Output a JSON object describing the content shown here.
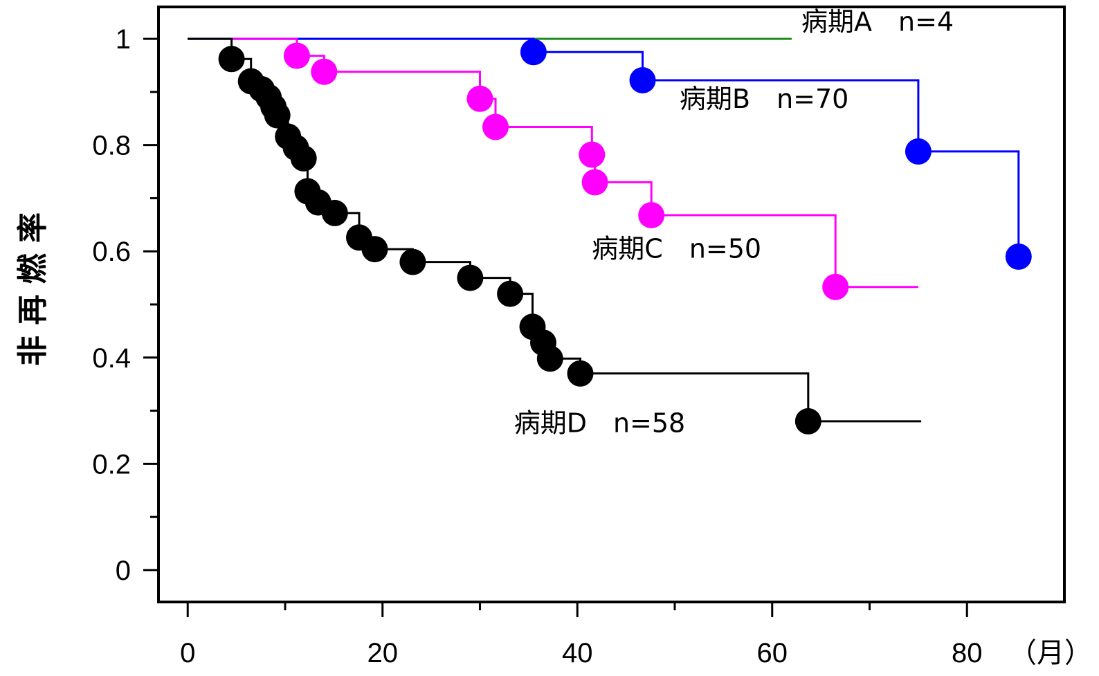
{
  "chart_data": {
    "type": "line",
    "subtype": "kaplan-meier-step",
    "ylabel": "非 再 燃 率",
    "xunit": "（月）",
    "xlim": [
      -3,
      90
    ],
    "ylim": [
      -0.06,
      1.06
    ],
    "xticks": [
      0,
      20,
      40,
      60,
      80
    ],
    "xticks_minor": [
      10,
      30,
      50,
      70
    ],
    "yticks": [
      0,
      0.2,
      0.4,
      0.6,
      0.8,
      1
    ],
    "yticks_minor": [
      0.1,
      0.3,
      0.5,
      0.7,
      0.9
    ],
    "grid": false,
    "legend": "inline-labels",
    "series": [
      {
        "name": "病期A",
        "label": "病期A　n=4",
        "color": "#1a8c1a",
        "steps": [
          [
            0,
            1
          ],
          [
            62,
            1
          ]
        ],
        "events": []
      },
      {
        "name": "病期B",
        "label": "病期B　n=70",
        "color": "#0000ff",
        "steps": [
          [
            0,
            1
          ],
          [
            35.5,
            1
          ],
          [
            35.5,
            0.975
          ],
          [
            46.7,
            0.975
          ],
          [
            46.7,
            0.922
          ],
          [
            75,
            0.922
          ],
          [
            75,
            0.788
          ],
          [
            85.3,
            0.788
          ],
          [
            85.3,
            0.59
          ]
        ],
        "events": [
          [
            35.5,
            0.975
          ],
          [
            46.7,
            0.922
          ],
          [
            75,
            0.788
          ],
          [
            85.3,
            0.59
          ]
        ]
      },
      {
        "name": "病期C",
        "label": "病期C　n=50",
        "color": "#ff00ff",
        "steps": [
          [
            4.5,
            1
          ],
          [
            11.2,
            1
          ],
          [
            11.2,
            0.968
          ],
          [
            14,
            0.968
          ],
          [
            14,
            0.938
          ],
          [
            30,
            0.938
          ],
          [
            30,
            0.887
          ],
          [
            31.6,
            0.887
          ],
          [
            31.6,
            0.834
          ],
          [
            41.5,
            0.834
          ],
          [
            41.5,
            0.782
          ],
          [
            41.8,
            0.782
          ],
          [
            41.8,
            0.73
          ],
          [
            47.6,
            0.73
          ],
          [
            47.6,
            0.668
          ],
          [
            66.5,
            0.668
          ],
          [
            66.5,
            0.533
          ],
          [
            75,
            0.533
          ]
        ],
        "events": [
          [
            11.2,
            0.968
          ],
          [
            14,
            0.938
          ],
          [
            30,
            0.887
          ],
          [
            31.6,
            0.834
          ],
          [
            41.5,
            0.782
          ],
          [
            41.8,
            0.73
          ],
          [
            47.6,
            0.668
          ],
          [
            66.5,
            0.533
          ]
        ]
      },
      {
        "name": "病期D",
        "label": "病期D　n=58",
        "color": "#000000",
        "steps": [
          [
            0,
            1
          ],
          [
            4.5,
            1
          ],
          [
            4.5,
            0.962
          ],
          [
            6.5,
            0.962
          ],
          [
            6.5,
            0.92
          ],
          [
            7.6,
            0.92
          ],
          [
            7.6,
            0.905
          ],
          [
            8.3,
            0.905
          ],
          [
            8.3,
            0.89
          ],
          [
            8.8,
            0.89
          ],
          [
            8.8,
            0.872
          ],
          [
            9.2,
            0.872
          ],
          [
            9.2,
            0.856
          ],
          [
            10.3,
            0.856
          ],
          [
            10.3,
            0.816
          ],
          [
            11.1,
            0.816
          ],
          [
            11.1,
            0.795
          ],
          [
            11.9,
            0.795
          ],
          [
            11.9,
            0.775
          ],
          [
            12.3,
            0.775
          ],
          [
            12.3,
            0.713
          ],
          [
            13.4,
            0.713
          ],
          [
            13.4,
            0.692
          ],
          [
            15.1,
            0.692
          ],
          [
            15.1,
            0.672
          ],
          [
            17.6,
            0.672
          ],
          [
            17.6,
            0.626
          ],
          [
            19.2,
            0.626
          ],
          [
            19.2,
            0.604
          ],
          [
            23.1,
            0.604
          ],
          [
            23.1,
            0.58
          ],
          [
            29,
            0.58
          ],
          [
            29,
            0.55
          ],
          [
            33.1,
            0.55
          ],
          [
            33.1,
            0.52
          ],
          [
            35.4,
            0.52
          ],
          [
            35.4,
            0.458
          ],
          [
            36.5,
            0.458
          ],
          [
            36.5,
            0.428
          ],
          [
            37.2,
            0.428
          ],
          [
            37.2,
            0.398
          ],
          [
            40.3,
            0.398
          ],
          [
            40.3,
            0.37
          ],
          [
            63.7,
            0.37
          ],
          [
            63.7,
            0.28
          ],
          [
            75.3,
            0.28
          ]
        ],
        "events": [
          [
            4.5,
            0.962
          ],
          [
            6.5,
            0.92
          ],
          [
            7.6,
            0.905
          ],
          [
            8.3,
            0.89
          ],
          [
            8.8,
            0.872
          ],
          [
            9.2,
            0.856
          ],
          [
            10.3,
            0.816
          ],
          [
            11.1,
            0.795
          ],
          [
            11.9,
            0.775
          ],
          [
            12.3,
            0.713
          ],
          [
            13.4,
            0.692
          ],
          [
            15.1,
            0.672
          ],
          [
            17.6,
            0.626
          ],
          [
            19.2,
            0.604
          ],
          [
            23.1,
            0.58
          ],
          [
            29,
            0.55
          ],
          [
            33.1,
            0.52
          ],
          [
            35.4,
            0.458
          ],
          [
            36.5,
            0.428
          ],
          [
            37.2,
            0.398
          ],
          [
            40.3,
            0.37
          ],
          [
            63.7,
            0.28
          ]
        ]
      }
    ],
    "annotations": [
      {
        "series": "病期A",
        "x": 63,
        "y": 1.015
      },
      {
        "series": "病期B",
        "x": 50.5,
        "y": 0.87
      },
      {
        "series": "病期C",
        "x": 41.5,
        "y": 0.588
      },
      {
        "series": "病期D",
        "x": 33.5,
        "y": 0.26
      }
    ]
  }
}
